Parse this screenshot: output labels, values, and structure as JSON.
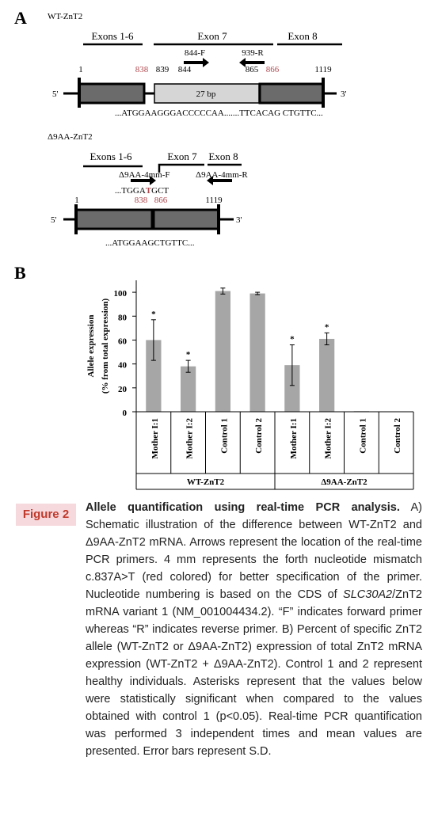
{
  "panel_a": {
    "label": "A",
    "wt": {
      "title": "WT-ZnT2",
      "exons": [
        "Exons 1-6",
        "Exon 7",
        "Exon 8"
      ],
      "primers": [
        "844-F",
        "939-R"
      ],
      "positions": [
        "1",
        "838",
        "839",
        "844",
        "865",
        "866",
        "1119"
      ],
      "box_label": "27 bp",
      "five": "5'",
      "three": "3'",
      "sequence": "...ATGGAAGGGACCCCCAA.......TTCACAG CTGTTC..."
    },
    "d9": {
      "title": "Δ9AA-ZnT2",
      "exons": [
        "Exons 1-6",
        "Exon 7",
        "Exon 8"
      ],
      "primers": [
        "Δ9AA-4mm-F",
        "Δ9AA-4mm-R"
      ],
      "primer_sequence": [
        "...TGGA",
        "T",
        "GCT"
      ],
      "positions": [
        "1",
        "838",
        "866",
        "1119"
      ],
      "five": "5'",
      "three": "3'",
      "sequence": "...ATGGAAGCTGTTC..."
    }
  },
  "panel_b_label": "B",
  "chart_data": {
    "type": "bar",
    "y_label": [
      "Allele expression",
      "(% from total expression)"
    ],
    "categories": [
      "Mother I:1",
      "Mother I:2",
      "Control 1",
      "Control 2",
      "Mother I:1",
      "Mother I:2",
      "Control 1",
      "Control 2"
    ],
    "groups": [
      "WT-ZnT2",
      "Δ9AA-ZnT2"
    ],
    "values": [
      60,
      38,
      101,
      99,
      39,
      61,
      0.5,
      0.3
    ],
    "errors": [
      17,
      5,
      2.5,
      1,
      17,
      5,
      0,
      0
    ],
    "significance": [
      "*",
      "*",
      null,
      null,
      "*",
      "*",
      null,
      null
    ],
    "color": "#a6a6a6",
    "ylim": [
      0,
      110
    ],
    "yticks": [
      0,
      20,
      40,
      60,
      80,
      100
    ]
  },
  "caption": {
    "label": "Figure 2",
    "title": "Allele quantification using real-time PCR analysis.",
    "text": "A) Schematic illustration of the difference between WT-ZnT2 and Δ9AA-ZnT2 mRNA. Arrows represent the location of the real-time PCR primers. 4 mm represents the forth nucleotide mismatch c.837A>T (red colored) for better specification of the primer. Nucleotide numbering is based on the CDS of ",
    "gene": "SLC30A2",
    "text_end": "/ZnT2 mRNA variant 1 (NM_001004434.2). “F” indicates forward primer whereas “R” indicates reverse primer. B) Percent of specific ZnT2 allele (WT-ZnT2 or Δ9AA-ZnT2) expression of total ZnT2 mRNA expression (WT-ZnT2 + Δ9AA-ZnT2). Control 1 and 2 represent healthy individuals. Asterisks represent that the values below were statistically significant when compared to the values obtained with control 1 (p<0.05). Real-time PCR quantification was performed 3 independent times and mean values are presented. Error bars represent S.D."
  }
}
